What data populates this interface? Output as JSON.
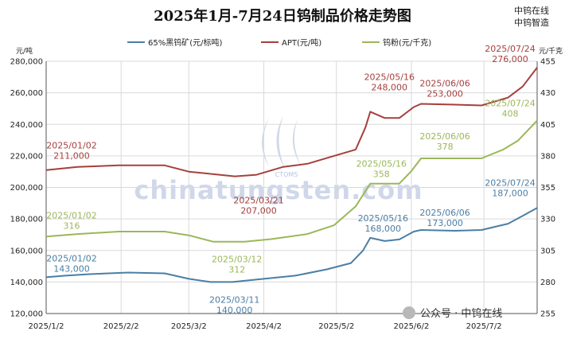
{
  "title": "2025年1月-7月24日钨制品价格走势图",
  "brand": [
    "中钨在线",
    "中钨智造"
  ],
  "watermark": {
    "text": "chinatungsten.com",
    "sub": "CTOMS"
  },
  "footer": {
    "text": "公众号 · 中钨在线"
  },
  "colors": {
    "ore": "#4a7ea5",
    "apt": "#a5403d",
    "powder": "#9bb75a",
    "grid": "#d9d9d9",
    "axis": "#555555"
  },
  "chart_data": {
    "type": "line",
    "title": "2025年1月-7月24日钨制品价格走势图",
    "left_axis": {
      "unit": "元/吨",
      "ylim": [
        120000,
        280000
      ],
      "ticks": [
        "120,000",
        "140,000",
        "160,000",
        "180,000",
        "200,000",
        "220,000",
        "240,000",
        "260,000",
        "280,000"
      ]
    },
    "right_axis": {
      "unit": "元/千克",
      "ylim": [
        255,
        455
      ],
      "ticks": [
        "255",
        "280",
        "305",
        "330",
        "355",
        "380",
        "405",
        "430",
        "455"
      ]
    },
    "x_ticks": [
      "2025/1/2",
      "2025/2/2",
      "2025/3/2",
      "2025/4/2",
      "2025/5/2",
      "2025/6/2",
      "2025/7/2"
    ],
    "grid": true,
    "legend_position": "top",
    "series": [
      {
        "name": "65%黑钨矿(元/标吨)",
        "axis": "left",
        "color": "#4a7ea5",
        "points": [
          [
            "2025/1/2",
            143000
          ],
          [
            "2025/1/10",
            144000
          ],
          [
            "2025/1/20",
            145000
          ],
          [
            "2025/2/5",
            146000
          ],
          [
            "2025/2/20",
            145500
          ],
          [
            "2025/3/2",
            142000
          ],
          [
            "2025/3/11",
            140000
          ],
          [
            "2025/3/20",
            140000
          ],
          [
            "2025/4/2",
            142000
          ],
          [
            "2025/4/15",
            144000
          ],
          [
            "2025/4/28",
            148000
          ],
          [
            "2025/5/8",
            152000
          ],
          [
            "2025/5/13",
            160000
          ],
          [
            "2025/5/16",
            168000
          ],
          [
            "2025/5/22",
            166000
          ],
          [
            "2025/5/28",
            167000
          ],
          [
            "2025/6/3",
            172000
          ],
          [
            "2025/6/6",
            173000
          ],
          [
            "2025/6/20",
            172500
          ],
          [
            "2025/7/1",
            173000
          ],
          [
            "2025/7/12",
            177000
          ],
          [
            "2025/7/18",
            182000
          ],
          [
            "2025/7/24",
            187000
          ]
        ]
      },
      {
        "name": "APT(元/吨)",
        "axis": "left",
        "color": "#a5403d",
        "points": [
          [
            "2025/1/2",
            211000
          ],
          [
            "2025/1/15",
            213000
          ],
          [
            "2025/2/1",
            214000
          ],
          [
            "2025/2/20",
            214000
          ],
          [
            "2025/3/2",
            210000
          ],
          [
            "2025/3/21",
            207000
          ],
          [
            "2025/3/30",
            208000
          ],
          [
            "2025/4/10",
            213000
          ],
          [
            "2025/4/20",
            215000
          ],
          [
            "2025/5/1",
            220000
          ],
          [
            "2025/5/10",
            224000
          ],
          [
            "2025/5/14",
            238000
          ],
          [
            "2025/5/16",
            248000
          ],
          [
            "2025/5/22",
            244000
          ],
          [
            "2025/5/28",
            244000
          ],
          [
            "2025/6/3",
            251000
          ],
          [
            "2025/6/6",
            253000
          ],
          [
            "2025/6/20",
            252500
          ],
          [
            "2025/7/1",
            252000
          ],
          [
            "2025/7/12",
            257000
          ],
          [
            "2025/7/18",
            264000
          ],
          [
            "2025/7/24",
            276000
          ]
        ]
      },
      {
        "name": "钨粉(元/千克)",
        "axis": "right",
        "color": "#9bb75a",
        "points": [
          [
            "2025/1/2",
            316
          ],
          [
            "2025/1/15",
            318
          ],
          [
            "2025/2/1",
            320
          ],
          [
            "2025/2/20",
            320
          ],
          [
            "2025/3/2",
            317
          ],
          [
            "2025/3/12",
            312
          ],
          [
            "2025/3/25",
            312
          ],
          [
            "2025/4/5",
            314
          ],
          [
            "2025/4/20",
            318
          ],
          [
            "2025/5/1",
            325
          ],
          [
            "2025/5/10",
            340
          ],
          [
            "2025/5/16",
            358
          ],
          [
            "2025/5/22",
            358
          ],
          [
            "2025/5/28",
            358
          ],
          [
            "2025/6/2",
            368
          ],
          [
            "2025/6/6",
            378
          ],
          [
            "2025/6/20",
            378
          ],
          [
            "2025/7/1",
            378
          ],
          [
            "2025/7/10",
            385
          ],
          [
            "2025/7/16",
            392
          ],
          [
            "2025/7/24",
            408
          ]
        ]
      }
    ],
    "annotations": [
      {
        "series": 1,
        "x": "2025/1/2",
        "value": 211000,
        "date_label": "2025/01/02",
        "value_label": "211,000"
      },
      {
        "series": 1,
        "x": "2025/3/21",
        "value": 207000,
        "date_label": "2025/03/21",
        "value_label": "207,000"
      },
      {
        "series": 1,
        "x": "2025/5/16",
        "value": 248000,
        "date_label": "2025/05/16",
        "value_label": "248,000"
      },
      {
        "series": 1,
        "x": "2025/6/6",
        "value": 253000,
        "date_label": "2025/06/06",
        "value_label": "253,000"
      },
      {
        "series": 1,
        "x": "2025/7/24",
        "value": 276000,
        "date_label": "2025/07/24",
        "value_label": "276,000"
      },
      {
        "series": 2,
        "x": "2025/1/2",
        "value": 316,
        "date_label": "2025/01/02",
        "value_label": "316"
      },
      {
        "series": 2,
        "x": "2025/3/12",
        "value": 312,
        "date_label": "2025/03/12",
        "value_label": "312"
      },
      {
        "series": 2,
        "x": "2025/5/16",
        "value": 358,
        "date_label": "2025/05/16",
        "value_label": "358"
      },
      {
        "series": 2,
        "x": "2025/6/6",
        "value": 378,
        "date_label": "2025/06/06",
        "value_label": "378"
      },
      {
        "series": 2,
        "x": "2025/7/24",
        "value": 408,
        "date_label": "2025/07/24",
        "value_label": "408"
      },
      {
        "series": 0,
        "x": "2025/1/2",
        "value": 143000,
        "date_label": "2025/01/02",
        "value_label": "143,000"
      },
      {
        "series": 0,
        "x": "2025/3/11",
        "value": 140000,
        "date_label": "2025/03/11",
        "value_label": "140,000"
      },
      {
        "series": 0,
        "x": "2025/5/16",
        "value": 168000,
        "date_label": "2025/05/16",
        "value_label": "168,000"
      },
      {
        "series": 0,
        "x": "2025/6/6",
        "value": 173000,
        "date_label": "2025/06/06",
        "value_label": "173,000"
      },
      {
        "series": 0,
        "x": "2025/7/24",
        "value": 187000,
        "date_label": "2025/07/24",
        "value_label": "187,000"
      }
    ]
  }
}
